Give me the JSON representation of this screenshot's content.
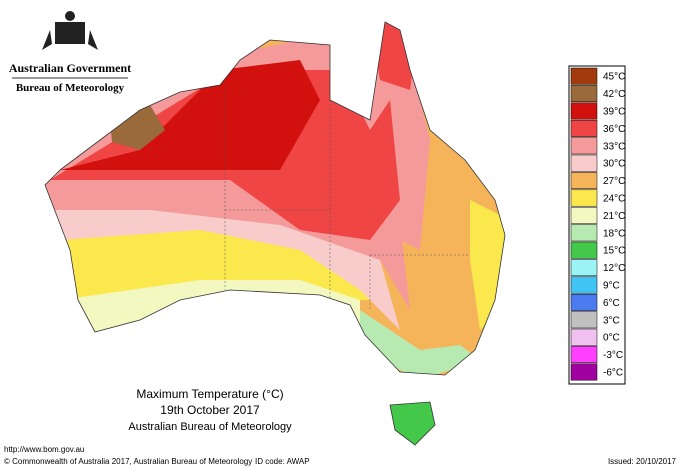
{
  "header": {
    "government": "Australian Government",
    "agency": "Bureau of Meteorology"
  },
  "legend": [
    {
      "label": "45°C",
      "color": "#a23b0c"
    },
    {
      "label": "42°C",
      "color": "#9a6a3b"
    },
    {
      "label": "39°C",
      "color": "#d2100d"
    },
    {
      "label": "36°C",
      "color": "#f04545"
    },
    {
      "label": "33°C",
      "color": "#f49a9a"
    },
    {
      "label": "30°C",
      "color": "#f9cccc"
    },
    {
      "label": "27°C",
      "color": "#f6b45a"
    },
    {
      "label": "24°C",
      "color": "#fae84c"
    },
    {
      "label": "21°C",
      "color": "#f3f7c0"
    },
    {
      "label": "18°C",
      "color": "#b7eab0"
    },
    {
      "label": "15°C",
      "color": "#44c84a"
    },
    {
      "label": "12°C",
      "color": "#9cf4f4"
    },
    {
      "label": "9°C",
      "color": "#40c4f4"
    },
    {
      "label": "6°C",
      "color": "#4a7cf0"
    },
    {
      "label": "3°C",
      "color": "#c0c0c0"
    },
    {
      "label": "0°C",
      "color": "#f0c0f0"
    },
    {
      "label": "-3°C",
      "color": "#ff40ff"
    },
    {
      "label": "-6°C",
      "color": "#a000a0"
    }
  ],
  "map_title": {
    "title": "Maximum Temperature (°C)",
    "date": "19th October 2017",
    "source": "Australian Bureau of Meteorology"
  },
  "footer": {
    "url": "http://www.bom.gov.au",
    "copyright": "© Commonwealth of Australia 2017, Australian Bureau of Meteorology",
    "id_code": "ID code: AWAP",
    "issued": "Issued: 20/10/2017"
  }
}
